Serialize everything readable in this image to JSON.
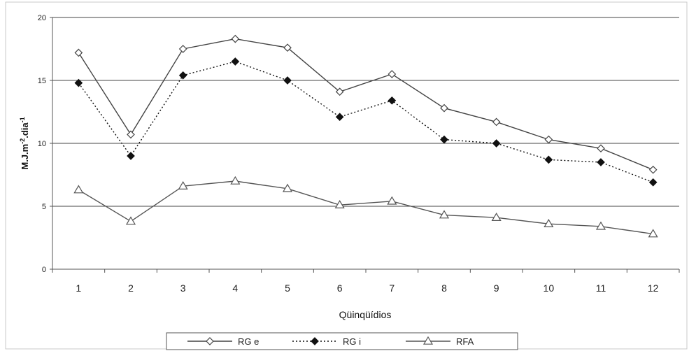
{
  "chart_data": {
    "type": "line",
    "title": "",
    "xlabel": "Qüinqüídios",
    "ylabel": "M.J.m-2.dia-1",
    "ylabel_parts": [
      {
        "text": "M.J.m",
        "super": false
      },
      {
        "text": "-2",
        "super": true
      },
      {
        "text": ".dia",
        "super": false
      },
      {
        "text": "-1",
        "super": true
      }
    ],
    "ylim": [
      0,
      20
    ],
    "yticks": [
      "0",
      "5",
      "10",
      "15",
      "20"
    ],
    "y_tick_values": [
      0,
      5,
      10,
      15,
      20
    ],
    "grid_values": [
      5,
      10,
      15,
      20
    ],
    "categories": [
      "1",
      "2",
      "3",
      "4",
      "5",
      "6",
      "7",
      "8",
      "9",
      "10",
      "11",
      "12"
    ],
    "legend_position": "bottom-center",
    "series": [
      {
        "name": "RG e",
        "marker": "diamond-open",
        "line": "solid",
        "color": "#444444",
        "values": [
          17.2,
          10.7,
          17.5,
          18.3,
          17.6,
          14.1,
          15.5,
          12.8,
          11.7,
          10.3,
          9.6,
          7.9
        ]
      },
      {
        "name": "RG i",
        "marker": "diamond-filled",
        "line": "dotted",
        "color": "#111111",
        "values": [
          14.8,
          9.0,
          15.4,
          16.5,
          15.0,
          12.1,
          13.4,
          10.3,
          10.0,
          8.7,
          8.5,
          6.9
        ]
      },
      {
        "name": "RFA",
        "marker": "triangle-open",
        "line": "solid",
        "color": "#555555",
        "values": [
          6.3,
          3.8,
          6.6,
          7.0,
          6.4,
          5.1,
          5.4,
          4.3,
          4.1,
          3.6,
          3.4,
          2.8
        ]
      }
    ]
  }
}
